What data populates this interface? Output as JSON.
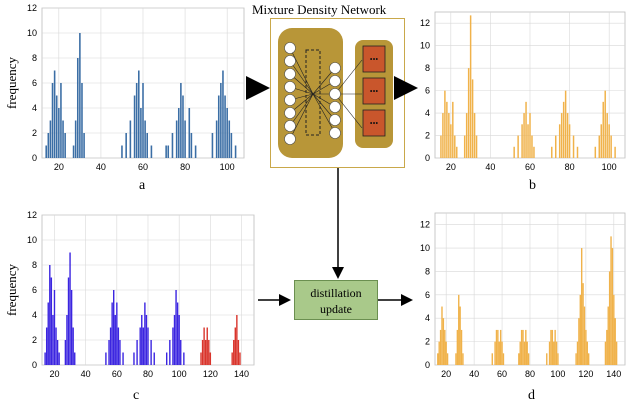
{
  "mdn": {
    "title": "Mixture Density Network",
    "dots": "•••"
  },
  "distillation": {
    "line1": "distillation",
    "line2": "update"
  },
  "panels": [
    {
      "id": "a",
      "letter": "a",
      "ylabel": "frequency",
      "color": "#3b6ea5",
      "extra_color": "#cc3b2b"
    },
    {
      "id": "b",
      "letter": "b",
      "ylabel": "",
      "color": "#f0b24a",
      "extra_color": "#f0b24a"
    },
    {
      "id": "c",
      "letter": "c",
      "ylabel": "frequency",
      "color": "#3b25e0",
      "extra_color": "#d9342b"
    },
    {
      "id": "d",
      "letter": "d",
      "ylabel": "",
      "color": "#f0b24a",
      "extra_color": "#f0b24a"
    }
  ],
  "chart_data": [
    {
      "type": "bar",
      "panel": "a",
      "xlim": [
        12,
        108
      ],
      "ylim": [
        0,
        12
      ],
      "xticks": [
        20,
        40,
        60,
        80,
        100
      ],
      "yticks": [
        0,
        2,
        4,
        6,
        8,
        10,
        12
      ],
      "series": [
        {
          "values": [
            [
              14,
              1
            ],
            [
              15,
              2
            ],
            [
              16,
              3
            ],
            [
              17,
              6
            ],
            [
              18,
              7
            ],
            [
              19,
              5
            ],
            [
              20,
              4
            ],
            [
              21,
              6
            ],
            [
              22,
              3
            ],
            [
              23,
              2
            ],
            [
              27,
              1
            ],
            [
              28,
              3
            ],
            [
              29,
              8
            ],
            [
              30,
              10
            ],
            [
              31,
              6
            ],
            [
              32,
              2
            ],
            [
              50,
              1
            ],
            [
              52,
              2
            ],
            [
              54,
              3
            ],
            [
              56,
              5
            ],
            [
              57,
              6
            ],
            [
              58,
              7
            ],
            [
              59,
              4
            ],
            [
              60,
              6
            ],
            [
              61,
              3
            ],
            [
              62,
              2
            ],
            [
              64,
              1
            ],
            [
              71,
              1
            ],
            [
              72,
              1
            ],
            [
              74,
              2
            ],
            [
              76,
              3
            ],
            [
              77,
              4
            ],
            [
              78,
              6
            ],
            [
              79,
              5
            ],
            [
              80,
              3
            ],
            [
              82,
              4
            ],
            [
              83,
              2
            ],
            [
              85,
              1
            ],
            [
              93,
              2
            ],
            [
              95,
              3
            ],
            [
              96,
              5
            ],
            [
              97,
              6
            ],
            [
              98,
              7
            ],
            [
              99,
              5
            ],
            [
              100,
              4
            ],
            [
              101,
              3
            ],
            [
              102,
              2
            ],
            [
              104,
              1
            ]
          ]
        }
      ]
    },
    {
      "type": "bar",
      "panel": "b",
      "xlim": [
        12,
        108
      ],
      "ylim": [
        0,
        13
      ],
      "xticks": [
        20,
        40,
        60,
        80,
        100
      ],
      "yticks": [
        0,
        2,
        4,
        6,
        8,
        10,
        12
      ],
      "series": [
        {
          "values": [
            [
              15,
              2
            ],
            [
              16,
              4
            ],
            [
              17,
              6
            ],
            [
              18,
              5
            ],
            [
              19,
              4
            ],
            [
              20,
              3
            ],
            [
              21,
              5
            ],
            [
              22,
              2
            ],
            [
              23,
              1
            ],
            [
              27,
              2
            ],
            [
              28,
              4
            ],
            [
              29,
              8
            ],
            [
              30,
              12.7
            ],
            [
              31,
              7
            ],
            [
              32,
              4
            ],
            [
              33,
              2
            ],
            [
              52,
              1
            ],
            [
              54,
              2
            ],
            [
              56,
              3
            ],
            [
              57,
              4
            ],
            [
              58,
              5
            ],
            [
              59,
              3
            ],
            [
              60,
              4
            ],
            [
              61,
              2
            ],
            [
              62,
              1
            ],
            [
              71,
              1
            ],
            [
              73,
              2
            ],
            [
              75,
              3
            ],
            [
              76,
              4
            ],
            [
              77,
              5
            ],
            [
              78,
              6
            ],
            [
              79,
              4
            ],
            [
              80,
              3
            ],
            [
              82,
              2
            ],
            [
              84,
              1
            ],
            [
              93,
              1
            ],
            [
              95,
              2
            ],
            [
              96,
              3
            ],
            [
              97,
              5
            ],
            [
              98,
              6
            ],
            [
              99,
              4
            ],
            [
              100,
              3
            ],
            [
              101,
              2
            ],
            [
              103,
              1
            ]
          ]
        }
      ]
    },
    {
      "type": "bar",
      "panel": "c",
      "xlim": [
        12,
        148
      ],
      "ylim": [
        0,
        12
      ],
      "xticks": [
        20,
        40,
        60,
        80,
        100,
        120,
        140
      ],
      "yticks": [
        0,
        2,
        4,
        6,
        8,
        10,
        12
      ],
      "series": [
        {
          "values": [
            [
              14,
              1
            ],
            [
              15,
              3
            ],
            [
              16,
              5
            ],
            [
              17,
              8
            ],
            [
              18,
              7
            ],
            [
              19,
              4
            ],
            [
              20,
              6
            ],
            [
              21,
              3
            ],
            [
              22,
              2
            ],
            [
              23,
              1
            ],
            [
              27,
              2
            ],
            [
              28,
              4
            ],
            [
              29,
              7
            ],
            [
              30,
              9
            ],
            [
              31,
              6
            ],
            [
              32,
              3
            ],
            [
              33,
              1
            ],
            [
              53,
              1
            ],
            [
              55,
              2
            ],
            [
              56,
              3
            ],
            [
              57,
              5
            ],
            [
              58,
              6
            ],
            [
              59,
              4
            ],
            [
              60,
              5
            ],
            [
              61,
              3
            ],
            [
              62,
              2
            ],
            [
              64,
              1
            ],
            [
              71,
              1
            ],
            [
              73,
              2
            ],
            [
              75,
              3
            ],
            [
              76,
              4
            ],
            [
              77,
              3
            ],
            [
              78,
              5
            ],
            [
              79,
              4
            ],
            [
              80,
              3
            ],
            [
              82,
              2
            ],
            [
              84,
              1
            ],
            [
              92,
              1
            ],
            [
              94,
              2
            ],
            [
              96,
              3
            ],
            [
              97,
              4
            ],
            [
              98,
              6
            ],
            [
              99,
              5
            ],
            [
              100,
              4
            ],
            [
              101,
              2
            ],
            [
              103,
              1
            ]
          ]
        },
        {
          "values": [
            [
              114,
              1
            ],
            [
              115,
              2
            ],
            [
              116,
              3
            ],
            [
              117,
              2
            ],
            [
              118,
              3
            ],
            [
              119,
              2
            ],
            [
              120,
              1
            ],
            [
              134,
              1
            ],
            [
              135,
              2
            ],
            [
              136,
              3
            ],
            [
              137,
              4
            ],
            [
              138,
              2
            ],
            [
              139,
              1
            ]
          ]
        }
      ]
    },
    {
      "type": "bar",
      "panel": "d",
      "xlim": [
        12,
        148
      ],
      "ylim": [
        0,
        13
      ],
      "xticks": [
        20,
        40,
        60,
        80,
        100,
        120,
        140
      ],
      "yticks": [
        0,
        2,
        4,
        6,
        8,
        10,
        12
      ],
      "series": [
        {
          "values": [
            [
              14,
              1
            ],
            [
              15,
              2
            ],
            [
              16,
              3
            ],
            [
              17,
              5
            ],
            [
              18,
              4
            ],
            [
              19,
              3
            ],
            [
              20,
              2
            ],
            [
              21,
              1
            ],
            [
              27,
              1
            ],
            [
              28,
              3
            ],
            [
              29,
              6
            ],
            [
              30,
              5
            ],
            [
              31,
              3
            ],
            [
              32,
              1
            ],
            [
              53,
              1
            ],
            [
              55,
              2
            ],
            [
              56,
              3
            ],
            [
              57,
              3
            ],
            [
              58,
              2
            ],
            [
              59,
              3
            ],
            [
              60,
              2
            ],
            [
              61,
              1
            ],
            [
              72,
              1
            ],
            [
              73,
              2
            ],
            [
              74,
              3
            ],
            [
              75,
              3
            ],
            [
              76,
              2
            ],
            [
              77,
              3
            ],
            [
              78,
              2
            ],
            [
              79,
              1
            ],
            [
              92,
              1
            ],
            [
              94,
              2
            ],
            [
              95,
              3
            ],
            [
              96,
              3
            ],
            [
              97,
              2
            ],
            [
              98,
              3
            ],
            [
              99,
              2
            ],
            [
              100,
              1
            ],
            [
              113,
              1
            ],
            [
              114,
              2
            ],
            [
              115,
              4
            ],
            [
              116,
              6
            ],
            [
              117,
              10
            ],
            [
              118,
              7
            ],
            [
              119,
              5
            ],
            [
              120,
              3
            ],
            [
              121,
              2
            ],
            [
              122,
              1
            ],
            [
              134,
              2
            ],
            [
              135,
              3
            ],
            [
              136,
              5
            ],
            [
              137,
              8
            ],
            [
              138,
              11
            ],
            [
              139,
              10
            ],
            [
              140,
              6
            ],
            [
              141,
              4
            ],
            [
              142,
              2
            ]
          ]
        }
      ]
    }
  ]
}
